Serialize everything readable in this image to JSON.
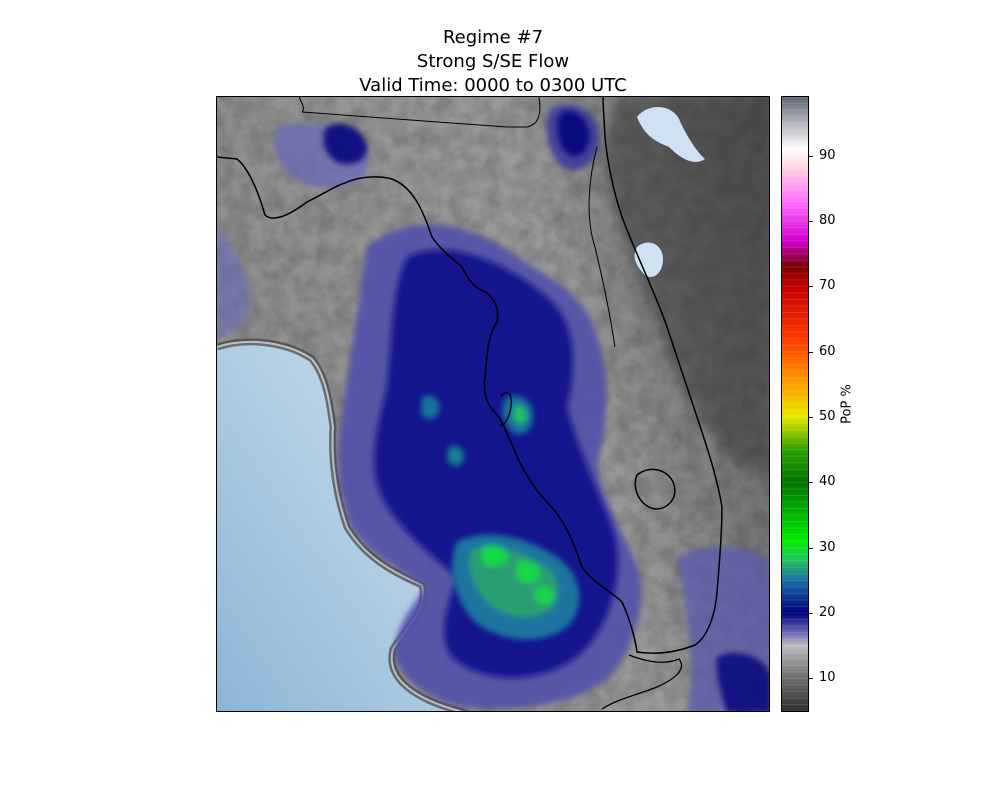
{
  "title": {
    "line1": "Regime #7",
    "line2": "Strong S/SE Flow",
    "line3": "Valid Time: 0000 to 0300 UTC"
  },
  "map": {
    "region": "Florida peninsula",
    "variable": "Probability of precipitation",
    "land_outline_color": "#000000",
    "water_color": "#c6dcee"
  },
  "colorbar": {
    "label": "PoP %",
    "range": [
      5,
      99
    ],
    "ticks": [
      {
        "value": 10,
        "label": "10"
      },
      {
        "value": 20,
        "label": "20"
      },
      {
        "value": 30,
        "label": "30"
      },
      {
        "value": 40,
        "label": "40"
      },
      {
        "value": 50,
        "label": "50"
      },
      {
        "value": 60,
        "label": "60"
      },
      {
        "value": 70,
        "label": "70"
      },
      {
        "value": 80,
        "label": "80"
      },
      {
        "value": 90,
        "label": "90"
      }
    ],
    "stops": [
      {
        "value": 5,
        "color": "#303030"
      },
      {
        "value": 10,
        "color": "#6e6e6e"
      },
      {
        "value": 15,
        "color": "#bcbcbc"
      },
      {
        "value": 17,
        "color": "#6a6aba"
      },
      {
        "value": 20,
        "color": "#00007a"
      },
      {
        "value": 25,
        "color": "#1a6ea6"
      },
      {
        "value": 28,
        "color": "#20c060"
      },
      {
        "value": 31,
        "color": "#00ee00"
      },
      {
        "value": 40,
        "color": "#007400"
      },
      {
        "value": 45,
        "color": "#2ea000"
      },
      {
        "value": 50,
        "color": "#e8e800"
      },
      {
        "value": 55,
        "color": "#ffa000"
      },
      {
        "value": 62,
        "color": "#ff3a00"
      },
      {
        "value": 70,
        "color": "#c20000"
      },
      {
        "value": 73,
        "color": "#7a0000"
      },
      {
        "value": 77,
        "color": "#d000d0"
      },
      {
        "value": 83,
        "color": "#ff70ff"
      },
      {
        "value": 88,
        "color": "#ffd0e0"
      },
      {
        "value": 91,
        "color": "#ffffff"
      },
      {
        "value": 95,
        "color": "#b4b4bc"
      },
      {
        "value": 99,
        "color": "#606878"
      }
    ]
  }
}
